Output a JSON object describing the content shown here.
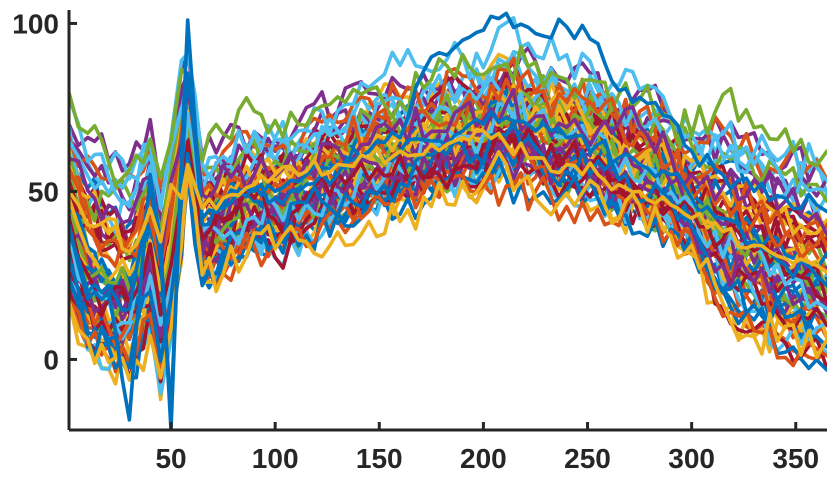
{
  "chart_data": {
    "type": "line",
    "title": "",
    "xlabel": "",
    "ylabel": "",
    "xlim": [
      1,
      365
    ],
    "ylim": [
      -21,
      104
    ],
    "grid": false,
    "legend": "none",
    "x_ticks": [
      50,
      100,
      150,
      200,
      250,
      300,
      350
    ],
    "y_ticks": [
      0,
      50,
      100
    ],
    "x_tick_labels": [
      "50",
      "100",
      "150",
      "200",
      "250",
      "300",
      "350"
    ],
    "y_tick_labels": [
      "0",
      "50",
      "100"
    ],
    "series_count": 60,
    "x": [
      1,
      10,
      20,
      30,
      40,
      45,
      50,
      55,
      58,
      65,
      75,
      90,
      100,
      115,
      130,
      145,
      160,
      175,
      190,
      200,
      211,
      225,
      240,
      255,
      265,
      275,
      290,
      300,
      315,
      330,
      345,
      360,
      365
    ],
    "central_profile": [
      48,
      35,
      30,
      27,
      40,
      22,
      38,
      60,
      72,
      42,
      47,
      52,
      50,
      55,
      58,
      62,
      64,
      67,
      70,
      70,
      74,
      70,
      68,
      66,
      62,
      60,
      56,
      50,
      45,
      40,
      34,
      32,
      30
    ],
    "series_highlights": [
      {
        "values": [
          40,
          18,
          20,
          -18,
          55,
          35,
          -21,
          60,
          101,
          40,
          45,
          50,
          48,
          52,
          55,
          60,
          62,
          65,
          68,
          70,
          72,
          68,
          66,
          64,
          60,
          58,
          55,
          48,
          42,
          35,
          28,
          25,
          22
        ],
        "color": "#0072bd"
      },
      {
        "values": [
          38,
          20,
          22,
          15,
          52,
          30,
          -15,
          55,
          85,
          42,
          46,
          52,
          50,
          55,
          58,
          62,
          66,
          90,
          95,
          98,
          103,
          97,
          99,
          94,
          80,
          78,
          72,
          62,
          55,
          50,
          48,
          46,
          44
        ],
        "color": "#0072bd"
      },
      {
        "values": [
          50,
          40,
          42,
          32,
          45,
          35,
          52,
          48,
          58,
          45,
          48,
          52,
          55,
          56,
          58,
          60,
          62,
          64,
          66,
          68,
          64,
          60,
          58,
          55,
          52,
          50,
          46,
          42,
          38,
          34,
          30,
          28,
          26
        ],
        "color": "#edb120"
      }
    ],
    "colors": [
      "#0072bd",
      "#d95319",
      "#edb120",
      "#7e2f8e",
      "#77ac30",
      "#4dbeee",
      "#a2142f"
    ]
  }
}
